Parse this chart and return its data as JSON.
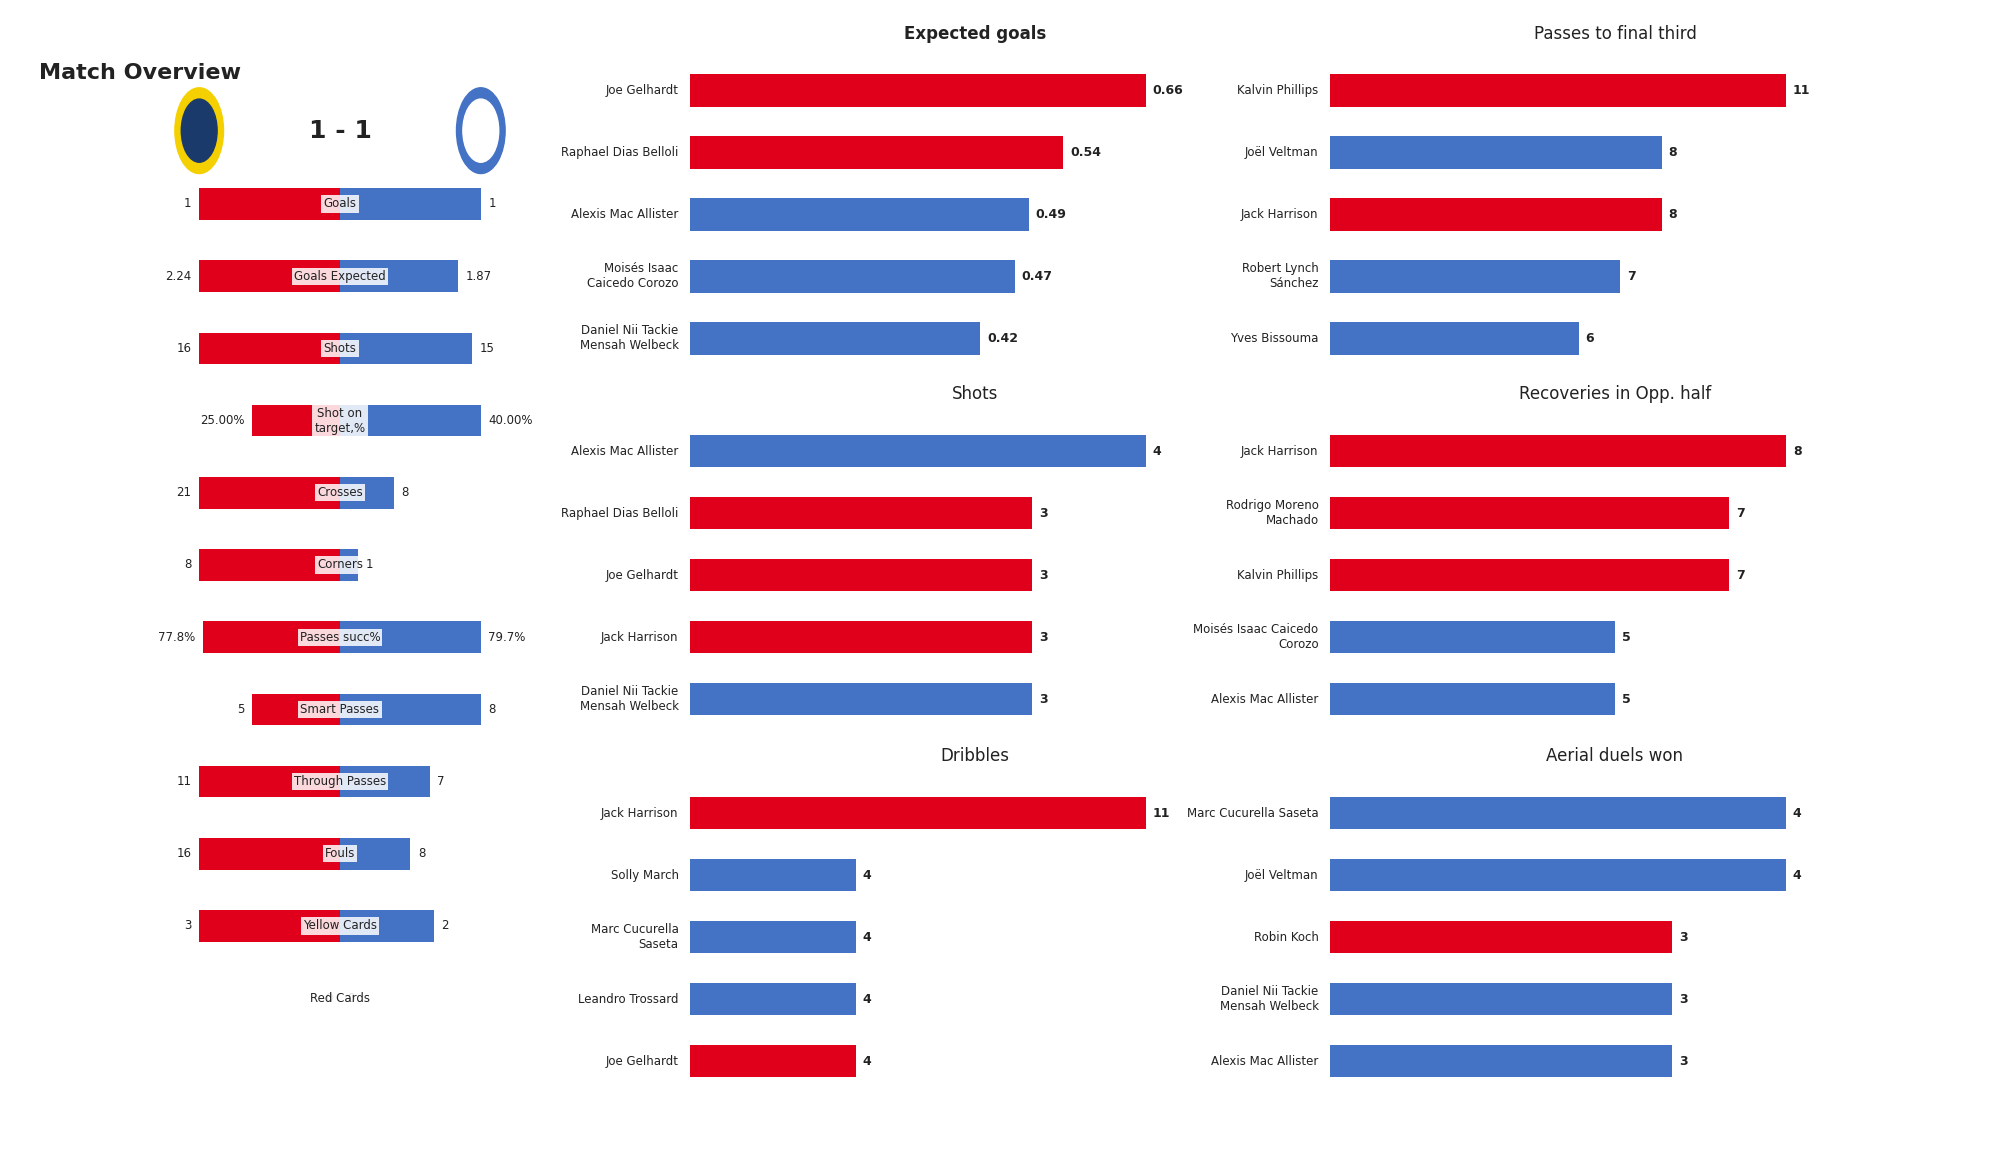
{
  "title": "Match Overview",
  "score": "1 - 1",
  "team1_color": "#e0001b",
  "team2_color": "#4472c4",
  "overview_labels": [
    "Goals",
    "Goals Expected",
    "Shots",
    "Shot on\ntarget,%",
    "Crosses",
    "Corners",
    "Passes succ%",
    "Smart Passes",
    "Through Passes",
    "Fouls",
    "Yellow Cards",
    "Red Cards"
  ],
  "overview_team1_str": [
    "1",
    "2.24",
    "16",
    "25.00%",
    "21",
    "8",
    "77.8%",
    "5",
    "11",
    "16",
    "3",
    "0"
  ],
  "overview_team2_str": [
    "1",
    "1.87",
    "15",
    "40.00%",
    "8",
    "1",
    "79.7%",
    "8",
    "7",
    "8",
    "2",
    "0"
  ],
  "overview_team1_numeric": [
    1,
    2.24,
    16,
    25.0,
    21,
    8,
    77.8,
    5,
    11,
    16,
    3,
    0
  ],
  "overview_team2_numeric": [
    1,
    1.87,
    15,
    40.0,
    8,
    1,
    79.7,
    8,
    7,
    8,
    2,
    0
  ],
  "xg_title": "Expected goals",
  "xg_players": [
    "Joe Gelhardt",
    "Raphael Dias Belloli",
    "Alexis Mac Allister",
    "Moisés Isaac\nCaicedo Corozo",
    "Daniel Nii Tackie\nMensah Welbeck"
  ],
  "xg_values": [
    0.66,
    0.54,
    0.49,
    0.47,
    0.42
  ],
  "xg_colors": [
    "#e0001b",
    "#e0001b",
    "#4472c4",
    "#4472c4",
    "#4472c4"
  ],
  "shots_title": "Shots",
  "shots_players": [
    "Alexis Mac Allister",
    "Raphael Dias Belloli",
    "Joe Gelhardt",
    "Jack Harrison",
    "Daniel Nii Tackie\nMensah Welbeck"
  ],
  "shots_values": [
    4,
    3,
    3,
    3,
    3
  ],
  "shots_colors": [
    "#4472c4",
    "#e0001b",
    "#e0001b",
    "#e0001b",
    "#4472c4"
  ],
  "dribbles_title": "Dribbles",
  "dribbles_players": [
    "Jack Harrison",
    "Solly March",
    "Marc Cucurella\nSaseta",
    "Leandro Trossard",
    "Joe Gelhardt"
  ],
  "dribbles_values": [
    11,
    4,
    4,
    4,
    4
  ],
  "dribbles_colors": [
    "#e0001b",
    "#4472c4",
    "#4472c4",
    "#4472c4",
    "#e0001b"
  ],
  "passes_title": "Passes to final third",
  "passes_players": [
    "Kalvin Phillips",
    "Joël Veltman",
    "Jack Harrison",
    "Robert Lynch\nSánchez",
    "Yves Bissouma"
  ],
  "passes_values": [
    11,
    8,
    8,
    7,
    6
  ],
  "passes_colors": [
    "#e0001b",
    "#4472c4",
    "#e0001b",
    "#4472c4",
    "#4472c4"
  ],
  "recoveries_title": "Recoveries in Opp. half",
  "recoveries_players": [
    "Jack Harrison",
    "Rodrigo Moreno\nMachado",
    "Kalvin Phillips",
    "Moisés Isaac Caicedo\nCorozo",
    "Alexis Mac Allister"
  ],
  "recoveries_values": [
    8,
    7,
    7,
    5,
    5
  ],
  "recoveries_colors": [
    "#e0001b",
    "#e0001b",
    "#e0001b",
    "#4472c4",
    "#4472c4"
  ],
  "aerial_title": "Aerial duels won",
  "aerial_players": [
    "Marc Cucurella Saseta",
    "Joël Veltman",
    "Robin Koch",
    "Daniel Nii Tackie\nMensah Welbeck",
    "Alexis Mac Allister"
  ],
  "aerial_values": [
    4,
    4,
    3,
    3,
    3
  ],
  "aerial_colors": [
    "#4472c4",
    "#4472c4",
    "#e0001b",
    "#4472c4",
    "#4472c4"
  ],
  "bg_color": "#ffffff",
  "text_color": "#222222"
}
